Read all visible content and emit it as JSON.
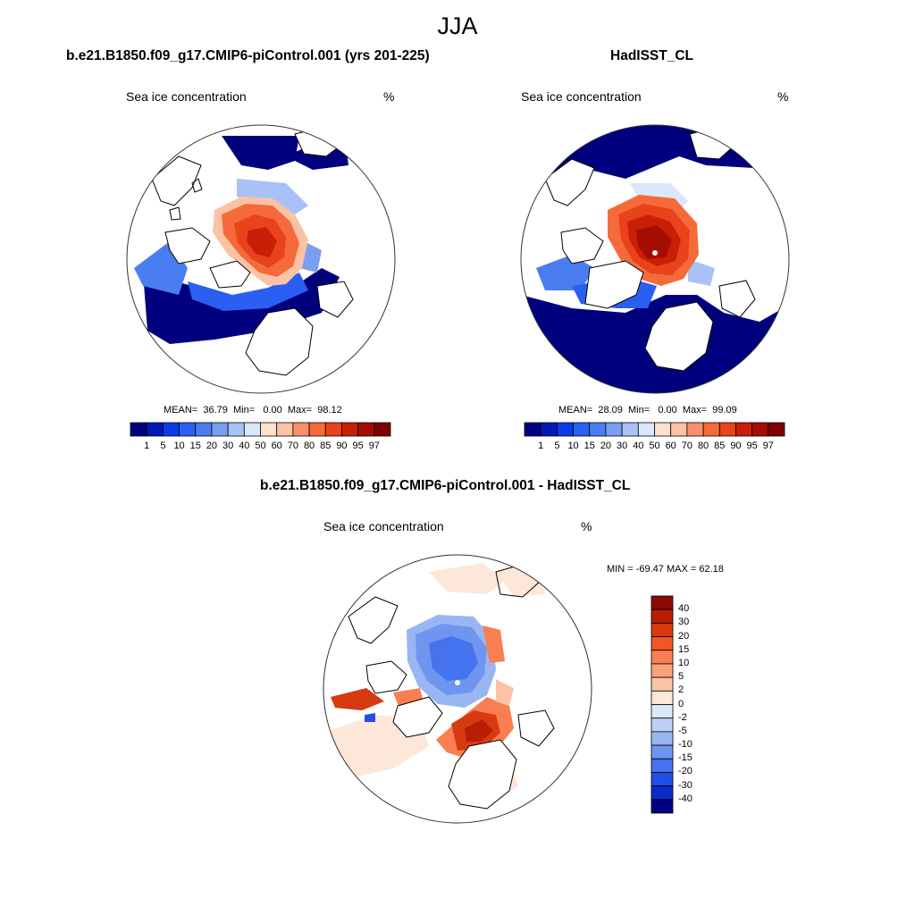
{
  "figure": {
    "title": "JJA",
    "panels": [
      {
        "title": "b.e21.B1850.f09_g17.CMIP6-piControl.001 (yrs 201-225)",
        "variable": "Sea ice concentration",
        "units": "%",
        "stats": {
          "mean_label": "MEAN=",
          "mean": "36.79",
          "min_label": "Min=",
          "min": "0.00",
          "max_label": "Max=",
          "max": "98.12"
        },
        "colorbar": {
          "levels": [
            "1",
            "5",
            "10",
            "15",
            "20",
            "30",
            "40",
            "50",
            "60",
            "70",
            "80",
            "85",
            "90",
            "95",
            "97"
          ],
          "colors": [
            "#00007f",
            "#0019b8",
            "#0a3be6",
            "#2a5ff2",
            "#4a7df0",
            "#7a9ff0",
            "#a8c2f5",
            "#dbe7fb",
            "#fde1cd",
            "#fcc2a4",
            "#f9906b",
            "#f56a3b",
            "#e8431a",
            "#c91f07",
            "#a50d02",
            "#7f0000"
          ]
        }
      },
      {
        "title": "HadISST_CL",
        "variable": "Sea ice concentration",
        "units": "%",
        "stats": {
          "mean_label": "MEAN=",
          "mean": "28.09",
          "min_label": "Min=",
          "min": "0.00",
          "max_label": "Max=",
          "max": "99.09"
        },
        "colorbar": {
          "levels": [
            "1",
            "5",
            "10",
            "15",
            "20",
            "30",
            "40",
            "50",
            "60",
            "70",
            "80",
            "85",
            "90",
            "95",
            "97"
          ],
          "colors": [
            "#00007f",
            "#0019b8",
            "#0a3be6",
            "#2a5ff2",
            "#4a7df0",
            "#7a9ff0",
            "#a8c2f5",
            "#dbe7fb",
            "#fde1cd",
            "#fcc2a4",
            "#f9906b",
            "#f56a3b",
            "#e8431a",
            "#c91f07",
            "#a50d02",
            "#7f0000"
          ]
        }
      },
      {
        "title": "b.e21.B1850.f09_g17.CMIP6-piControl.001 - HadISST_CL",
        "variable": "Sea ice concentration",
        "units": "%",
        "stats_text": "MIN = -69.47 MAX =  62.18",
        "colorbar": {
          "levels": [
            "40",
            "30",
            "20",
            "15",
            "10",
            "5",
            "2",
            "0",
            "-2",
            "-5",
            "-10",
            "-15",
            "-20",
            "-30",
            "-40"
          ],
          "colors": [
            "#8c0a00",
            "#b81e04",
            "#d83a10",
            "#f25526",
            "#f97e52",
            "#fba27c",
            "#fcc4a5",
            "#fde7d8",
            "#dce8fa",
            "#bdd1f6",
            "#98b6f2",
            "#6e95ef",
            "#4572ee",
            "#1f4ee8",
            "#0a2cc6",
            "#00007f"
          ]
        }
      }
    ]
  }
}
